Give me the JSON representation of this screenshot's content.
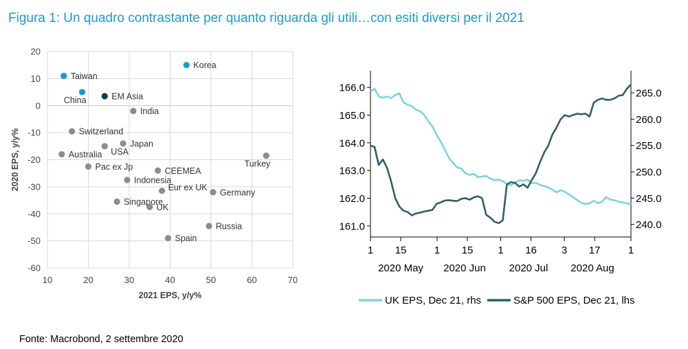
{
  "page": {
    "title": "Figura 1: Un quadro contrastante per quanto riguarda gli utili…con esiti diversi per il 2021",
    "source": "Fonte: Macrobond, 2 settembre 2020"
  },
  "colors": {
    "highlight": "#1a9ad6",
    "em_asia": "#0e3a5a",
    "grey_point": "#8c8c8c",
    "uk_line": "#7dd3df",
    "sp_line": "#2f5f66",
    "grid": "#d9d9d9"
  },
  "chart_data": [
    {
      "type": "scatter",
      "xlabel": "2021 EPS, y/y%",
      "ylabel": "2020 EPS, y/y%",
      "xlim": [
        10,
        70
      ],
      "ylim": [
        -60,
        20
      ],
      "xticks": [
        "10",
        "20",
        "30",
        "40",
        "50",
        "60",
        "70"
      ],
      "yticks": [
        "20",
        "10",
        "0",
        "-10",
        "-20",
        "-30",
        "-40",
        "-50",
        "-60"
      ],
      "points": [
        {
          "name": "Korea",
          "x": 44,
          "y": 15,
          "group": "highlight",
          "label_side": "right"
        },
        {
          "name": "Taiwan",
          "x": 14,
          "y": 11,
          "group": "highlight",
          "label_side": "right"
        },
        {
          "name": "China",
          "x": 18.5,
          "y": 5,
          "group": "highlight",
          "label_side": "left-below"
        },
        {
          "name": "EM Asia",
          "x": 24,
          "y": 3.5,
          "group": "em_asia",
          "label_side": "right"
        },
        {
          "name": "India",
          "x": 31,
          "y": -2,
          "group": "grey",
          "label_side": "right"
        },
        {
          "name": "Switzerland",
          "x": 16,
          "y": -9.5,
          "group": "grey",
          "label_side": "right"
        },
        {
          "name": "Japan",
          "x": 28.5,
          "y": -14,
          "group": "grey",
          "label_side": "right"
        },
        {
          "name": "USA",
          "x": 24,
          "y": -15,
          "group": "grey",
          "label_side": "right-below"
        },
        {
          "name": "Australia",
          "x": 13.5,
          "y": -18,
          "group": "grey",
          "label_side": "right"
        },
        {
          "name": "Turkey",
          "x": 63.5,
          "y": -18.5,
          "group": "grey",
          "label_side": "left-below"
        },
        {
          "name": "Pac ex Jp",
          "x": 20,
          "y": -22.5,
          "group": "grey",
          "label_side": "right"
        },
        {
          "name": "CEEMEA",
          "x": 37,
          "y": -24,
          "group": "grey",
          "label_side": "right"
        },
        {
          "name": "Indonesia",
          "x": 29.5,
          "y": -27.5,
          "group": "grey",
          "label_side": "right"
        },
        {
          "name": "Eur ex UK",
          "x": 38,
          "y": -31.5,
          "group": "grey",
          "label_side": "right-above"
        },
        {
          "name": "Germany",
          "x": 50.5,
          "y": -32,
          "group": "grey",
          "label_side": "right"
        },
        {
          "name": "Singapore",
          "x": 27,
          "y": -35.5,
          "group": "grey",
          "label_side": "right"
        },
        {
          "name": "UK",
          "x": 35,
          "y": -37.5,
          "group": "grey",
          "label_side": "right"
        },
        {
          "name": "Russia",
          "x": 49.5,
          "y": -44.5,
          "group": "grey",
          "label_side": "right"
        },
        {
          "name": "Spain",
          "x": 39.5,
          "y": -49,
          "group": "grey",
          "label_side": "right"
        }
      ]
    },
    {
      "type": "line",
      "x_tick_labels": [
        "1",
        "15",
        "1",
        "15",
        "1",
        "16",
        "3",
        "17",
        "1"
      ],
      "month_labels": [
        "2020 May",
        "2020 Jun",
        "2020 Jul",
        "2020 Aug"
      ],
      "left_axis": {
        "ticks": [
          "166.0",
          "165.0",
          "164.0",
          "163.0",
          "162.0",
          "161.0"
        ],
        "ylim": [
          160.6,
          166.6
        ]
      },
      "right_axis": {
        "ticks": [
          "265.0",
          "260.0",
          "255.0",
          "250.0",
          "245.0",
          "240.0"
        ],
        "ylim": [
          237.6,
          269.2
        ]
      },
      "series": [
        {
          "name": "UK EPS, Dec 21, rhs",
          "axis": "right",
          "values": [
            265.2,
            265.8,
            264.3,
            264.1,
            264.3,
            264.0,
            264.6,
            264.9,
            263.2,
            262.7,
            262.5,
            261.8,
            261.5,
            260.8,
            259.6,
            258.6,
            257.0,
            255.7,
            254.2,
            252.6,
            251.7,
            250.8,
            250.6,
            249.7,
            249.4,
            249.6,
            249.0,
            249.1,
            249.2,
            248.7,
            248.4,
            248.5,
            248.2,
            247.7,
            247.4,
            248.0,
            248.4,
            248.3,
            248.5,
            247.8,
            247.9,
            247.5,
            247.3,
            247.0,
            246.6,
            246.1,
            246.5,
            246.2,
            245.7,
            245.2,
            244.6,
            244.1,
            243.9,
            244.0,
            244.5,
            244.0,
            244.3,
            245.2,
            244.7,
            244.6,
            244.3,
            244.2,
            244.0,
            243.8
          ]
        },
        {
          "name": "S&P 500 EPS, Dec 21, lhs",
          "axis": "left",
          "values": [
            163.9,
            163.85,
            163.2,
            163.4,
            163.1,
            162.6,
            162.0,
            161.7,
            161.55,
            161.5,
            161.38,
            161.45,
            161.48,
            161.52,
            161.55,
            161.58,
            161.8,
            161.85,
            161.92,
            161.93,
            161.91,
            161.9,
            161.98,
            162.0,
            161.95,
            162.03,
            162.07,
            162.0,
            161.4,
            161.3,
            161.15,
            161.1,
            161.2,
            162.5,
            162.58,
            162.55,
            162.42,
            162.5,
            162.38,
            162.65,
            162.9,
            163.3,
            163.65,
            163.9,
            164.3,
            164.55,
            164.85,
            165.0,
            164.95,
            165.0,
            165.05,
            165.03,
            165.05,
            164.95,
            165.45,
            165.55,
            165.6,
            165.55,
            165.55,
            165.6,
            165.7,
            165.72,
            165.95,
            166.1
          ]
        }
      ]
    }
  ]
}
